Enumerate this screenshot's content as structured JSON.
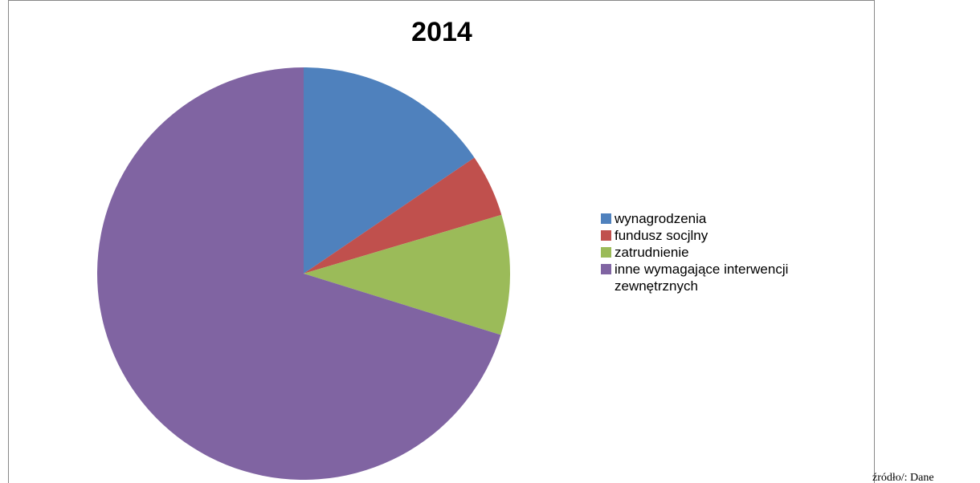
{
  "chart_data": {
    "type": "pie",
    "title": "2014",
    "categories": [
      "wynagrodzenia",
      "fundusz socjlny",
      "zatrudnienie",
      "inne wymagające interwencji zewnętrznych"
    ],
    "values": [
      15.5,
      4.9,
      9.4,
      70.2
    ],
    "colors": [
      "#4f81bd",
      "#c0504d",
      "#9bbb59",
      "#8064a2"
    ],
    "legend": "right"
  },
  "source_note": "źródło/:  Dane"
}
